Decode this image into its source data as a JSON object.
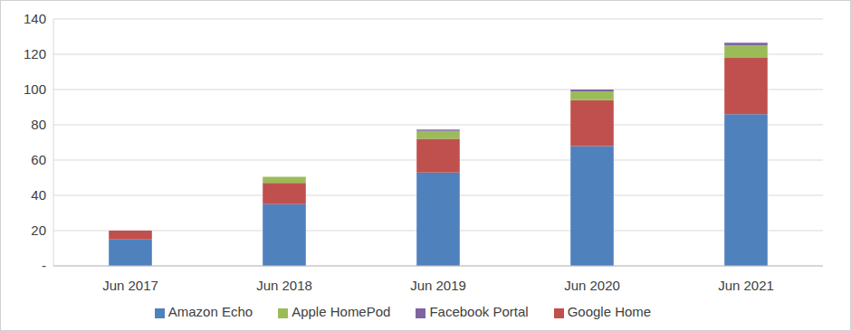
{
  "chart_data": {
    "type": "bar",
    "categories": [
      "Jun 2017",
      "Jun 2018",
      "Jun 2019",
      "Jun 2020",
      "Jun 2021"
    ],
    "series": [
      {
        "name": "Amazon Echo",
        "color": "#4f81bd",
        "values": [
          15,
          35,
          53,
          68,
          86
        ]
      },
      {
        "name": "Google Home",
        "color": "#c0504d",
        "values": [
          5,
          12,
          19,
          26,
          32
        ]
      },
      {
        "name": "Apple HomePod",
        "color": "#9bbb59",
        "values": [
          0,
          3.5,
          4.5,
          5,
          7
        ]
      },
      {
        "name": "Facebook Portal",
        "color": "#8064a2",
        "values": [
          0,
          0,
          0.8,
          1,
          1.5
        ]
      }
    ],
    "ylim": [
      0,
      140
    ],
    "yticks": [
      {
        "value": 0,
        "label": "-"
      },
      20,
      40,
      60,
      80,
      100,
      120,
      140
    ],
    "grid": true,
    "stacked": true,
    "legend": "bottom"
  }
}
